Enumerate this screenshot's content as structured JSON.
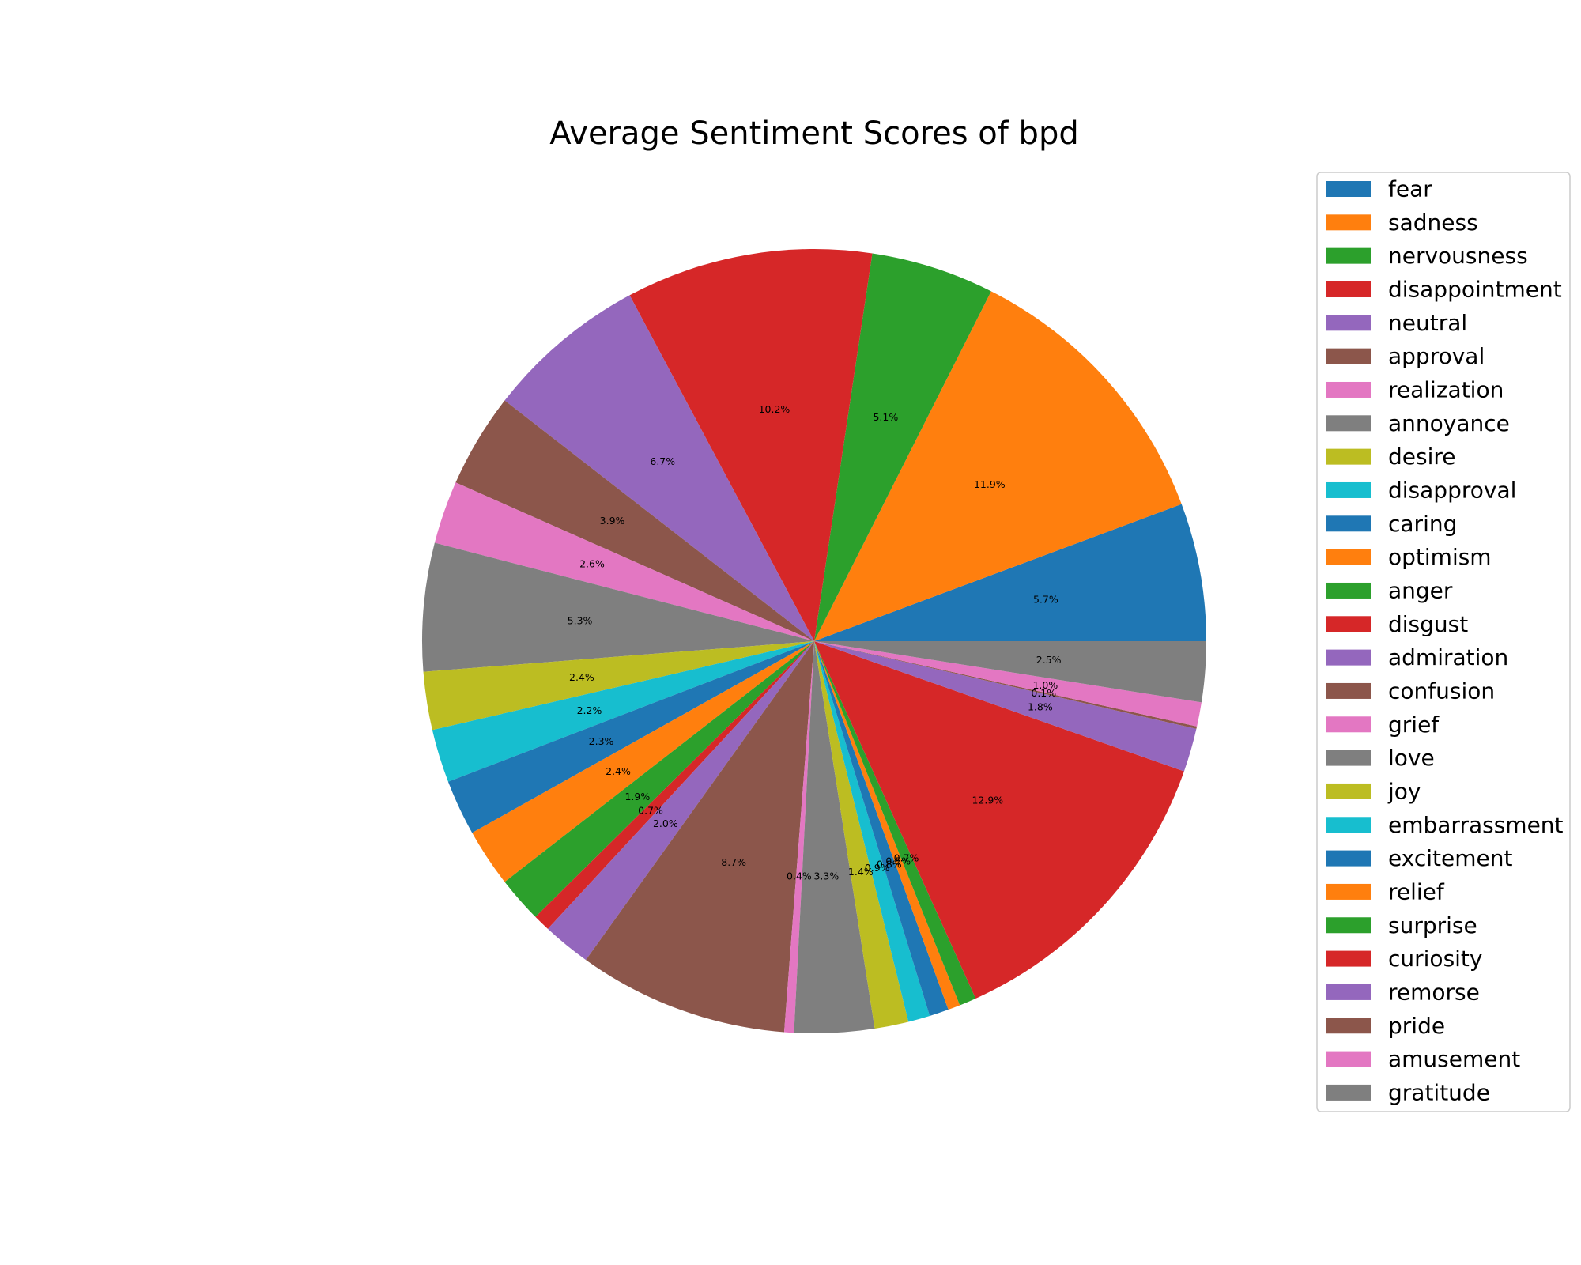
{
  "chart_data": {
    "type": "pie",
    "title": "Average Sentiment Scores of bpd",
    "start_angle_deg": 0,
    "direction": "counterclockwise",
    "legend_position": "right",
    "slices": [
      {
        "label": "fear",
        "value": 5.7,
        "pct_label": "5.7%",
        "color": "#1f77b4"
      },
      {
        "label": "sadness",
        "value": 11.9,
        "pct_label": "11.9%",
        "color": "#ff7f0e"
      },
      {
        "label": "nervousness",
        "value": 5.1,
        "pct_label": "5.1%",
        "color": "#2ca02c"
      },
      {
        "label": "disappointment",
        "value": 10.2,
        "pct_label": "10.2%",
        "color": "#d62728"
      },
      {
        "label": "neutral",
        "value": 6.7,
        "pct_label": "6.7%",
        "color": "#9467bd"
      },
      {
        "label": "approval",
        "value": 3.9,
        "pct_label": "3.9%",
        "color": "#8c564b"
      },
      {
        "label": "realization",
        "value": 2.6,
        "pct_label": "2.6%",
        "color": "#e377c2"
      },
      {
        "label": "annoyance",
        "value": 5.3,
        "pct_label": "5.3%",
        "color": "#7f7f7f"
      },
      {
        "label": "desire",
        "value": 2.4,
        "pct_label": "2.4%",
        "color": "#bcbd22"
      },
      {
        "label": "disapproval",
        "value": 2.2,
        "pct_label": "2.2%",
        "color": "#17becf"
      },
      {
        "label": "caring",
        "value": 2.3,
        "pct_label": "2.3%",
        "color": "#1f77b4"
      },
      {
        "label": "optimism",
        "value": 2.4,
        "pct_label": "2.4%",
        "color": "#ff7f0e"
      },
      {
        "label": "anger",
        "value": 1.9,
        "pct_label": "1.9%",
        "color": "#2ca02c"
      },
      {
        "label": "disgust",
        "value": 0.7,
        "pct_label": "0.7%",
        "color": "#d62728"
      },
      {
        "label": "admiration",
        "value": 2.0,
        "pct_label": "2.0%",
        "color": "#9467bd"
      },
      {
        "label": "confusion",
        "value": 8.7,
        "pct_label": "8.7%",
        "color": "#8c564b"
      },
      {
        "label": "grief",
        "value": 0.4,
        "pct_label": "0.4%",
        "color": "#e377c2"
      },
      {
        "label": "love",
        "value": 3.3,
        "pct_label": "3.3%",
        "color": "#7f7f7f"
      },
      {
        "label": "joy",
        "value": 1.4,
        "pct_label": "1.4%",
        "color": "#bcbd22"
      },
      {
        "label": "embarrassment",
        "value": 0.9,
        "pct_label": "0.9%",
        "color": "#17becf"
      },
      {
        "label": "excitement",
        "value": 0.8,
        "pct_label": "0.8%",
        "color": "#1f77b4"
      },
      {
        "label": "relief",
        "value": 0.5,
        "pct_label": "0.5%",
        "color": "#ff7f0e"
      },
      {
        "label": "surprise",
        "value": 0.7,
        "pct_label": "0.7%",
        "color": "#2ca02c"
      },
      {
        "label": "curiosity",
        "value": 12.9,
        "pct_label": "12.9%",
        "color": "#d62728"
      },
      {
        "label": "remorse",
        "value": 1.8,
        "pct_label": "1.8%",
        "color": "#9467bd"
      },
      {
        "label": "pride",
        "value": 0.1,
        "pct_label": "0.1%",
        "color": "#8c564b"
      },
      {
        "label": "amusement",
        "value": 1.0,
        "pct_label": "1.0%",
        "color": "#e377c2"
      },
      {
        "label": "gratitude",
        "value": 2.5,
        "pct_label": "2.5%",
        "color": "#7f7f7f"
      }
    ]
  }
}
